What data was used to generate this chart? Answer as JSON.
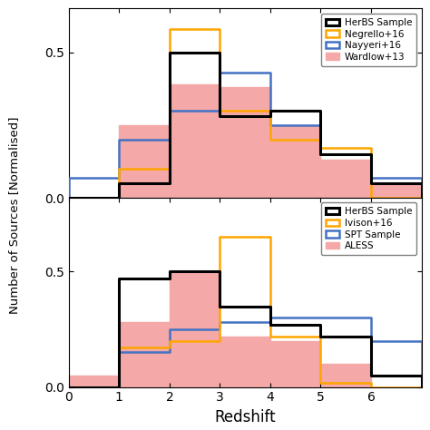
{
  "bin_edges": [
    0,
    1,
    2,
    3,
    4,
    5,
    6,
    7
  ],
  "top": {
    "herbs": [
      0.0,
      0.05,
      0.5,
      0.28,
      0.3,
      0.15,
      0.05
    ],
    "negrello": [
      0.0,
      0.1,
      0.58,
      0.3,
      0.2,
      0.17,
      0.0
    ],
    "nayyeri": [
      0.07,
      0.2,
      0.3,
      0.43,
      0.25,
      0.15,
      0.07
    ],
    "wardlow": [
      0.0,
      0.25,
      0.39,
      0.38,
      0.25,
      0.13,
      0.05
    ],
    "legend_labels": [
      "HerBS Sample",
      "Negrello+16",
      "Nayyeri+16",
      "Wardlow+13"
    ]
  },
  "bottom": {
    "herbs": [
      0.0,
      0.47,
      0.5,
      0.35,
      0.27,
      0.22,
      0.05
    ],
    "ivison": [
      0.0,
      0.17,
      0.2,
      0.65,
      0.22,
      0.02,
      0.0
    ],
    "spt": [
      0.0,
      0.15,
      0.25,
      0.28,
      0.3,
      0.3,
      0.2
    ],
    "aless": [
      0.05,
      0.28,
      0.5,
      0.22,
      0.2,
      0.1,
      0.0
    ],
    "legend_labels": [
      "HerBS Sample",
      "Ivison+16",
      "SPT Sample",
      "ALESS"
    ]
  },
  "colors": {
    "herbs": "#000000",
    "orange": "#FFA500",
    "blue": "#4472C4",
    "pink_fill": "#F4A9A8"
  },
  "ylabel": "Number of Sources [Normalised]",
  "xlabel": "Redshift",
  "xlim": [
    0,
    7
  ]
}
